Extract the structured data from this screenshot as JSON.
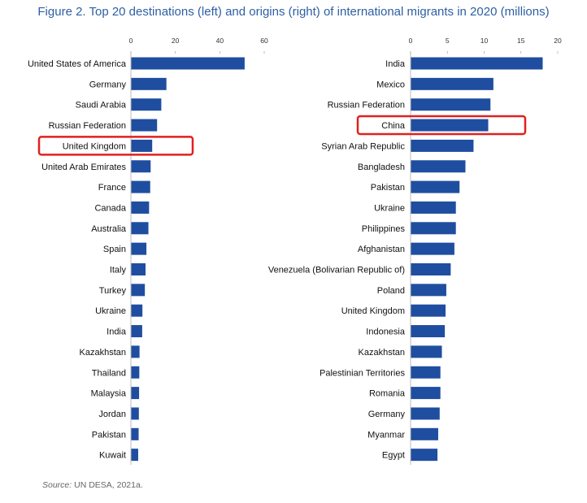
{
  "title": "Figure 2. Top 20 destinations (left) and origins (right) of international migrants in 2020 (millions)",
  "source_prefix": "Source:",
  "source_text": " UN DESA, 2021a.",
  "colors": {
    "bar": "#1f4ea0",
    "highlight": "#e0201f",
    "axis": "#aaaaaa",
    "title": "#2e5fa3"
  },
  "chart_data": [
    {
      "type": "bar",
      "orientation": "horizontal",
      "panel": "left",
      "categories": [
        "United States of America",
        "Germany",
        "Saudi Arabia",
        "Russian Federation",
        "United Kingdom",
        "United Arab Emirates",
        "France",
        "Canada",
        "Australia",
        "Spain",
        "Italy",
        "Turkey",
        "Ukraine",
        "India",
        "Kazakhstan",
        "Thailand",
        "Malaysia",
        "Jordan",
        "Pakistan",
        "Kuwait"
      ],
      "values": [
        51,
        15.8,
        13.5,
        11.6,
        9.4,
        8.7,
        8.5,
        8.0,
        7.7,
        6.8,
        6.4,
        6.1,
        5.0,
        4.9,
        3.7,
        3.6,
        3.5,
        3.4,
        3.3,
        3.1
      ],
      "xlim": [
        0,
        60
      ],
      "ticks": [
        "0",
        "20",
        "40",
        "60"
      ],
      "highlight": "United Kingdom"
    },
    {
      "type": "bar",
      "orientation": "horizontal",
      "panel": "right",
      "categories": [
        "India",
        "Mexico",
        "Russian Federation",
        "China",
        "Syrian Arab Republic",
        "Bangladesh",
        "Pakistan",
        "Ukraine",
        "Philippines",
        "Afghanistan",
        "Venezuela (Bolivarian Republic of)",
        "Poland",
        "United Kingdom",
        "Indonesia",
        "Kazakhstan",
        "Palestinian Territories",
        "Romania",
        "Germany",
        "Myanmar",
        "Egypt"
      ],
      "values": [
        17.9,
        11.2,
        10.8,
        10.5,
        8.5,
        7.4,
        6.6,
        6.1,
        6.1,
        5.9,
        5.4,
        4.8,
        4.7,
        4.6,
        4.2,
        4.0,
        4.0,
        3.9,
        3.7,
        3.6
      ],
      "xlim": [
        0,
        20
      ],
      "ticks": [
        "0",
        "5",
        "10",
        "15",
        "20"
      ],
      "highlight": "China"
    }
  ]
}
